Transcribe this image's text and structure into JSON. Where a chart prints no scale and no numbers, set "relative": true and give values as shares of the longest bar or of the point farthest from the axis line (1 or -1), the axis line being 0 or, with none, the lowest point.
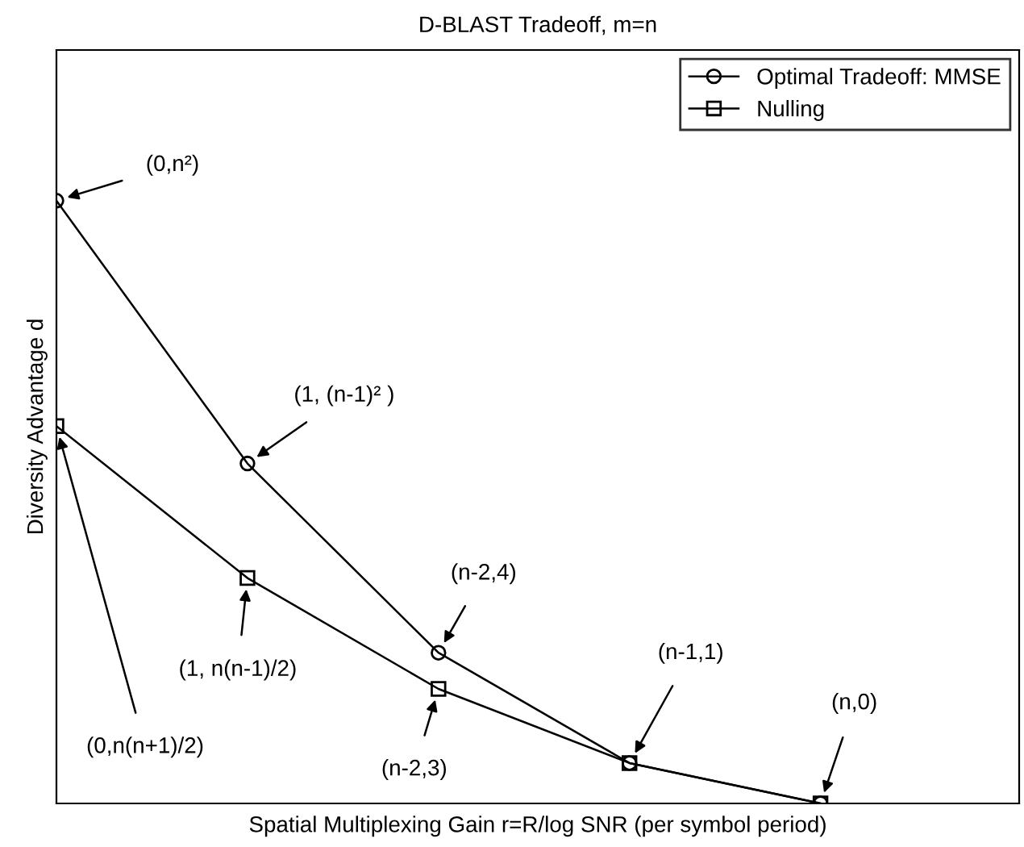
{
  "chart_data": {
    "type": "line",
    "title": "D-BLAST Tradeoff, m=n",
    "xlabel": "Spatial Multiplexing Gain r=R/log SNR (per symbol period)",
    "ylabel": "Diversity Advantage d",
    "categories": [
      null,
      null,
      null,
      null,
      null
    ],
    "relative": true,
    "grid": false,
    "legend": "top right",
    "series": [
      {
        "name": "Optimal Tradeoff: MMSE",
        "color": "#000000",
        "marker": "circle",
        "values": [
          1,
          0.564,
          0.25,
          0.067,
          0
        ]
      },
      {
        "name": "Nulling",
        "color": "#000000",
        "marker": "square",
        "values": [
          0.626,
          0.374,
          0.19,
          0.067,
          0
        ]
      }
    ],
    "annotations": [
      "(0,n²)",
      "(1, (n-1)² )",
      "(n-2,4)",
      "(n-1,1)",
      "(n,0)",
      "(0,n(n+1)/2)",
      "(1, n(n-1)/2)",
      "(n-2,3)"
    ]
  }
}
